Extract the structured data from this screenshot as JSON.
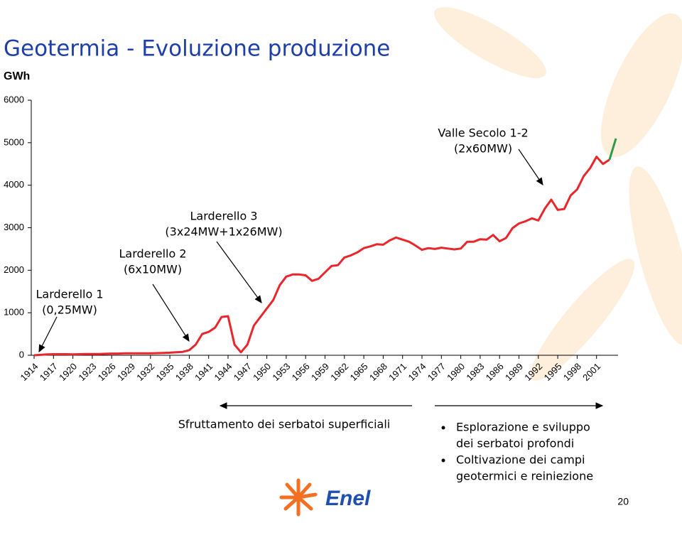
{
  "chart_data": {
    "type": "line",
    "title": "Geotermia - Evoluzione produzione",
    "y_label": "GWh",
    "x": [
      1914,
      1915,
      1916,
      1917,
      1918,
      1919,
      1920,
      1921,
      1922,
      1923,
      1924,
      1925,
      1926,
      1927,
      1928,
      1929,
      1930,
      1931,
      1932,
      1933,
      1934,
      1935,
      1936,
      1937,
      1938,
      1939,
      1940,
      1941,
      1942,
      1943,
      1944,
      1945,
      1946,
      1947,
      1948,
      1949,
      1950,
      1951,
      1952,
      1953,
      1954,
      1955,
      1956,
      1957,
      1958,
      1959,
      1960,
      1961,
      1962,
      1963,
      1964,
      1965,
      1966,
      1967,
      1968,
      1969,
      1970,
      1971,
      1972,
      1973,
      1974,
      1975,
      1976,
      1977,
      1978,
      1979,
      1980,
      1981,
      1982,
      1983,
      1984,
      1985,
      1986,
      1987,
      1988,
      1989,
      1990,
      1991,
      1992,
      1993,
      1994,
      1995,
      1996,
      1997,
      1998,
      1999,
      2000,
      2001,
      2002,
      2003,
      2004
    ],
    "series": [
      {
        "color": "#e8262b",
        "values": [
          0,
          10,
          20,
          25,
          25,
          25,
          20,
          25,
          30,
          30,
          30,
          35,
          40,
          40,
          45,
          45,
          45,
          45,
          45,
          50,
          55,
          60,
          70,
          80,
          120,
          250,
          500,
          550,
          650,
          900,
          920,
          250,
          70,
          250,
          700,
          900,
          1100,
          1300,
          1650,
          1850,
          1900,
          1900,
          1880,
          1750,
          1800,
          1950,
          2100,
          2120,
          2300,
          2350,
          2420,
          2520,
          2560,
          2610,
          2600,
          2700,
          2770,
          2720,
          2670,
          2580,
          2480,
          2520,
          2500,
          2530,
          2510,
          2490,
          2510,
          2670,
          2670,
          2730,
          2720,
          2830,
          2680,
          2760,
          2990,
          3100,
          3150,
          3220,
          3170,
          3450,
          3660,
          3420,
          3440,
          3760,
          3900,
          4210,
          4400,
          4670,
          4500,
          4600,
          null
        ]
      },
      {
        "color": "#2e9a4a",
        "values": [
          null,
          null,
          null,
          null,
          null,
          null,
          null,
          null,
          null,
          null,
          null,
          null,
          null,
          null,
          null,
          null,
          null,
          null,
          null,
          null,
          null,
          null,
          null,
          null,
          null,
          null,
          null,
          null,
          null,
          null,
          null,
          null,
          null,
          null,
          null,
          null,
          null,
          null,
          null,
          null,
          null,
          null,
          null,
          null,
          null,
          null,
          null,
          null,
          null,
          null,
          null,
          null,
          null,
          null,
          null,
          null,
          null,
          null,
          null,
          null,
          null,
          null,
          null,
          null,
          null,
          null,
          null,
          null,
          null,
          null,
          null,
          null,
          null,
          null,
          null,
          null,
          null,
          null,
          null,
          null,
          null,
          null,
          null,
          null,
          null,
          null,
          null,
          null,
          null,
          4600,
          5100
        ]
      }
    ],
    "xlim": [
      1914,
      2004
    ],
    "xticks": [
      1914,
      1917,
      1920,
      1923,
      1926,
      1929,
      1932,
      1935,
      1938,
      1941,
      1944,
      1947,
      1950,
      1953,
      1956,
      1959,
      1962,
      1965,
      1968,
      1971,
      1974,
      1977,
      1980,
      1983,
      1986,
      1989,
      1992,
      1995,
      1998,
      2001
    ],
    "ylim": [
      0,
      6000
    ],
    "yticks": [
      0,
      1000,
      2000,
      3000,
      4000,
      5000,
      6000
    ],
    "annotations": [
      {
        "lines": [
          "Larderello 1",
          "(0,25MW)"
        ]
      },
      {
        "lines": [
          "Larderello 2",
          "(6x10MW)"
        ]
      },
      {
        "lines": [
          "Larderello 3",
          "(3x24MW+1x26MW)"
        ]
      },
      {
        "lines": [
          "Valle Secolo 1-2",
          "(2x60MW)"
        ]
      }
    ],
    "phases": [
      {
        "lines": [
          "Sfruttamento dei serbatoi superficiali"
        ]
      },
      {
        "bullets": [
          [
            "Esplorazione e sviluppo",
            "dei serbatoi profondi"
          ],
          [
            "Coltivazione dei campi",
            "geotermici e reiniezione"
          ]
        ]
      }
    ],
    "logo": "Enel",
    "page_number": "20"
  }
}
